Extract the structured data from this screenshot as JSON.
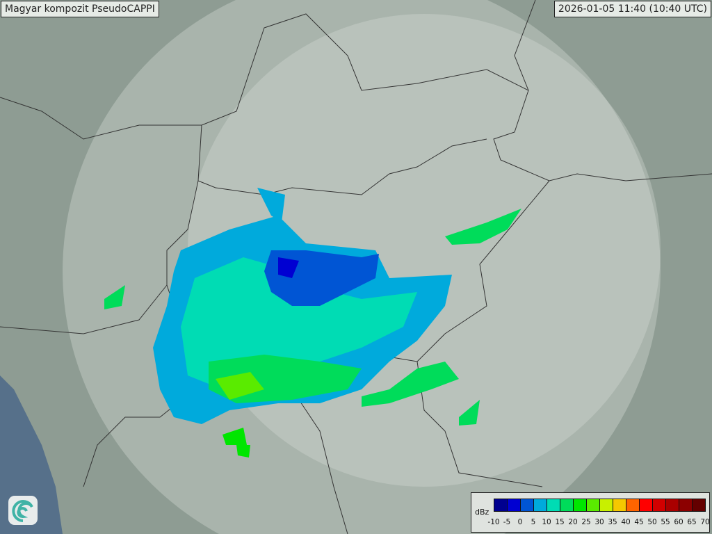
{
  "title": "Magyar kompozit  PseudoCAPPI",
  "timestamp": "2026-01-05 11:40 (10:40 UTC)",
  "logo_icon": "swirl-logo-icon",
  "legend": {
    "unit": "dBz",
    "ticks": [
      "-10",
      "-5",
      "0",
      "5",
      "10",
      "15",
      "20",
      "25",
      "30",
      "35",
      "40",
      "45",
      "50",
      "55",
      "60",
      "65",
      "70"
    ],
    "colors": [
      "#00008f",
      "#0000d2",
      "#0055d4",
      "#00aadc",
      "#00dcb4",
      "#00dc5a",
      "#00e600",
      "#5aeb00",
      "#c8f000",
      "#f5c800",
      "#ff6400",
      "#ff0000",
      "#d20000",
      "#aa0000",
      "#8c0000",
      "#640000"
    ]
  },
  "colors": {
    "land": "#8e9c93",
    "radar_coverage": "#c9d3cc",
    "sea": "#56708a",
    "border": "#333333"
  }
}
